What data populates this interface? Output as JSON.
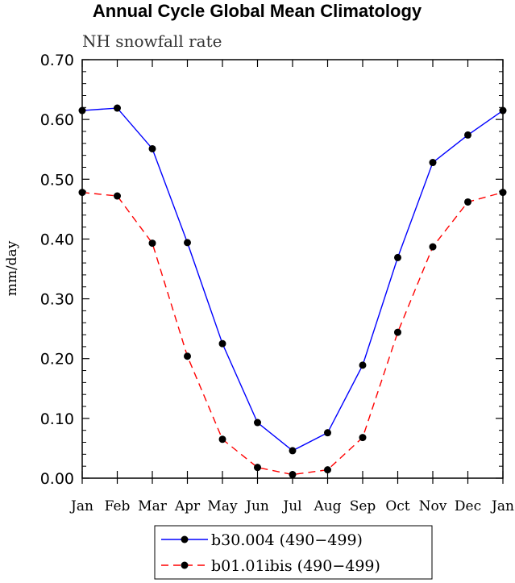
{
  "chart_data": {
    "type": "line",
    "title": "Annual Cycle Global Mean Climatology",
    "subtitle": "NH snowfall rate",
    "xlabel": "",
    "ylabel": "mm/day",
    "ylim": [
      0,
      0.7
    ],
    "yticks": [
      "0.00",
      "0.10",
      "0.20",
      "0.30",
      "0.40",
      "0.50",
      "0.60",
      "0.70"
    ],
    "categories": [
      "Jan",
      "Feb",
      "Mar",
      "Apr",
      "May",
      "Jun",
      "Jul",
      "Aug",
      "Sep",
      "Oct",
      "Nov",
      "Dec",
      "Jan"
    ],
    "grid": false,
    "legend_position": "bottom",
    "series": [
      {
        "name": "b30.004 (490−499)",
        "color": "#0000ff",
        "dash": "solid",
        "values": [
          0.615,
          0.619,
          0.551,
          0.394,
          0.225,
          0.093,
          0.046,
          0.076,
          0.189,
          0.369,
          0.528,
          0.574,
          0.615
        ]
      },
      {
        "name": "b01.01ibis (490−499)",
        "color": "#ff0000",
        "dash": "dashed",
        "values": [
          0.478,
          0.472,
          0.393,
          0.204,
          0.065,
          0.018,
          0.006,
          0.014,
          0.068,
          0.244,
          0.387,
          0.462,
          0.478
        ]
      }
    ]
  }
}
